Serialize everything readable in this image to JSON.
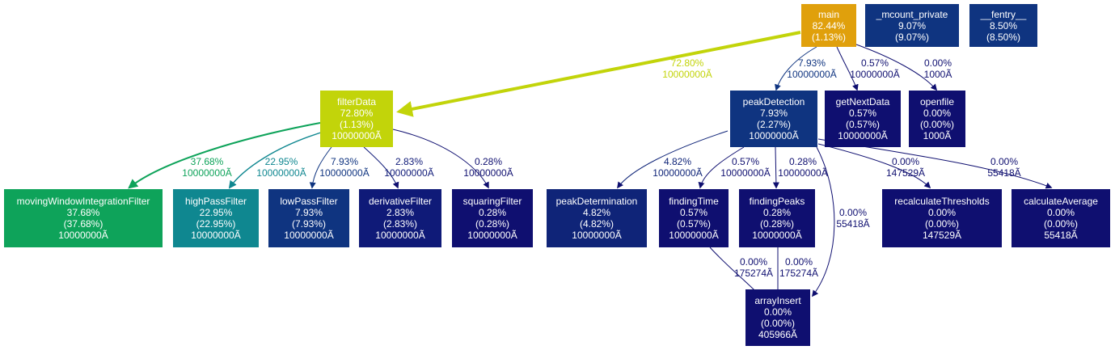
{
  "nodes": {
    "main": {
      "name": "main",
      "total": "82.44%",
      "self": "(1.13%)",
      "color": "#e0a00c"
    },
    "mcount": {
      "name": "_mcount_private",
      "total": "9.07%",
      "self": "(9.07%)",
      "color": "#0f3480"
    },
    "fentry": {
      "name": "__fentry__",
      "total": "8.50%",
      "self": "(8.50%)",
      "color": "#0f3480"
    },
    "filterData": {
      "name": "filterData",
      "total": "72.80%",
      "self": "(1.13%)",
      "calls": "10000000Ã",
      "color": "#c2d40a"
    },
    "peakDetection": {
      "name": "peakDetection",
      "total": "7.93%",
      "self": "(2.27%)",
      "calls": "10000000Ã",
      "color": "#0f3480"
    },
    "getNextData": {
      "name": "getNextData",
      "total": "0.57%",
      "self": "(0.57%)",
      "calls": "10000000Ã",
      "color": "#0f0f70"
    },
    "openfile": {
      "name": "openfile",
      "total": "0.00%",
      "self": "(0.00%)",
      "calls": "1000Ã",
      "color": "#0f0f70"
    },
    "movingWindow": {
      "name": "movingWindowIntegrationFilter",
      "total": "37.68%",
      "self": "(37.68%)",
      "calls": "10000000Ã",
      "color": "#0ea35a"
    },
    "highPass": {
      "name": "highPassFilter",
      "total": "22.95%",
      "self": "(22.95%)",
      "calls": "10000000Ã",
      "color": "#0f8790"
    },
    "lowPass": {
      "name": "lowPassFilter",
      "total": "7.93%",
      "self": "(7.93%)",
      "calls": "10000000Ã",
      "color": "#0f3480"
    },
    "derivative": {
      "name": "derivativeFilter",
      "total": "2.83%",
      "self": "(2.83%)",
      "calls": "10000000Ã",
      "color": "#0f1a78"
    },
    "squaring": {
      "name": "squaringFilter",
      "total": "0.28%",
      "self": "(0.28%)",
      "calls": "10000000Ã",
      "color": "#0f0f70"
    },
    "peakDetermination": {
      "name": "peakDetermination",
      "total": "4.82%",
      "self": "(4.82%)",
      "calls": "10000000Ã",
      "color": "#0f2478"
    },
    "findingTime": {
      "name": "findingTime",
      "total": "0.57%",
      "self": "(0.57%)",
      "calls": "10000000Ã",
      "color": "#0f0f70"
    },
    "findingPeaks": {
      "name": "findingPeaks",
      "total": "0.28%",
      "self": "(0.28%)",
      "calls": "10000000Ã",
      "color": "#0f0f70"
    },
    "recalc": {
      "name": "recalculateThresholds",
      "total": "0.00%",
      "self": "(0.00%)",
      "calls": "147529Ã",
      "color": "#0f0f70"
    },
    "calcAvg": {
      "name": "calculateAverage",
      "total": "0.00%",
      "self": "(0.00%)",
      "calls": "55418Ã",
      "color": "#0f0f70"
    },
    "arrayInsert": {
      "name": "arrayInsert",
      "total": "0.00%",
      "self": "(0.00%)",
      "calls": "405966Ã",
      "color": "#0f0f70"
    }
  },
  "edges": {
    "main_filterData": {
      "pct": "72.80%",
      "calls": "10000000Ã",
      "color": "#c2d40a"
    },
    "main_peakDetection": {
      "pct": "7.93%",
      "calls": "10000000Ã",
      "color": "#0f3480"
    },
    "main_getNextData": {
      "pct": "0.57%",
      "calls": "10000000Ã",
      "color": "#0f0f70"
    },
    "main_openfile": {
      "pct": "0.00%",
      "calls": "1000Ã",
      "color": "#0f0f70"
    },
    "filterData_movingWindow": {
      "pct": "37.68%",
      "calls": "10000000Ã",
      "color": "#0ea35a"
    },
    "filterData_highPass": {
      "pct": "22.95%",
      "calls": "10000000Ã",
      "color": "#0f8790"
    },
    "filterData_lowPass": {
      "pct": "7.93%",
      "calls": "10000000Ã",
      "color": "#0f3480"
    },
    "filterData_derivative": {
      "pct": "2.83%",
      "calls": "10000000Ã",
      "color": "#0f1a78"
    },
    "filterData_squaring": {
      "pct": "0.28%",
      "calls": "10000000Ã",
      "color": "#0f0f70"
    },
    "peakDetection_peakDetermination": {
      "pct": "4.82%",
      "calls": "10000000Ã",
      "color": "#0f2478"
    },
    "peakDetection_findingTime": {
      "pct": "0.57%",
      "calls": "10000000Ã",
      "color": "#0f0f70"
    },
    "peakDetection_findingPeaks": {
      "pct": "0.28%",
      "calls": "10000000Ã",
      "color": "#0f0f70"
    },
    "peakDetection_recalc": {
      "pct": "0.00%",
      "calls": "147529Ã",
      "color": "#0f0f70"
    },
    "peakDetection_calcAvg": {
      "pct": "0.00%",
      "calls": "55418Ã",
      "color": "#0f0f70"
    },
    "peakDetection_arrayInsert": {
      "pct": "0.00%",
      "calls": "55418Ã",
      "color": "#0f0f70"
    },
    "findingTime_arrayInsert": {
      "pct": "0.00%",
      "calls": "175274Ã",
      "color": "#0f0f70"
    },
    "findingPeaks_arrayInsert": {
      "pct": "0.00%",
      "calls": "175274Ã",
      "color": "#0f0f70"
    }
  }
}
